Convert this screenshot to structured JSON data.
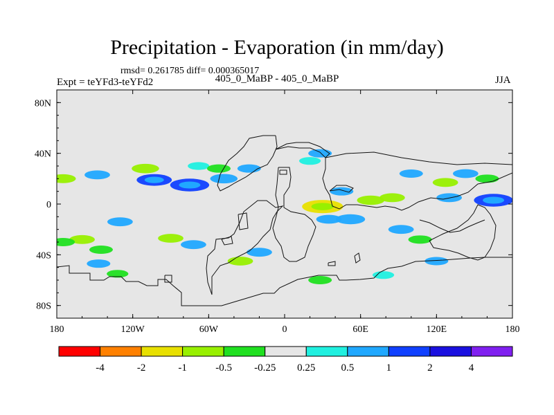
{
  "title": "Precipitation - Evaporation (in mm/day)",
  "stats_text": "rmsd= 0.261785 diff= 0.000365017",
  "experiment": "Expt = teYFd3-teYFd2",
  "comparison": "405_0_MaBP - 405_0_MaBP",
  "season": "JJA",
  "chart_data": {
    "type": "heatmap",
    "title": "Precipitation - Evaporation (in mm/day)",
    "map_projection": "cylindrical equidistant",
    "xlim": [
      -180,
      180
    ],
    "ylim": [
      -90,
      90
    ],
    "x_ticks": [
      {
        "value": -180,
        "label": "180"
      },
      {
        "value": -120,
        "label": "120W"
      },
      {
        "value": -60,
        "label": "60W"
      },
      {
        "value": 0,
        "label": "0"
      },
      {
        "value": 60,
        "label": "60E"
      },
      {
        "value": 120,
        "label": "120E"
      },
      {
        "value": 180,
        "label": "180"
      }
    ],
    "y_ticks": [
      {
        "value": 80,
        "label": "80N"
      },
      {
        "value": 40,
        "label": "40N"
      },
      {
        "value": 0,
        "label": "0"
      },
      {
        "value": -40,
        "label": "40S"
      },
      {
        "value": -80,
        "label": "80S"
      }
    ],
    "background_color": "#e6e6e6",
    "levels": [
      "-4",
      "-2",
      "-1",
      "-0.5",
      "-0.25",
      "0.25",
      "0.5",
      "1",
      "2",
      "4"
    ],
    "bin_colors": [
      "#ff0000",
      "#ff8000",
      "#e8e000",
      "#98f000",
      "#20e020",
      "#e6e6e6",
      "#20f0e0",
      "#20a8ff",
      "#1040ff",
      "#1a10e0",
      "#8020f0"
    ],
    "anomaly_regions": [
      {
        "lon": -148,
        "lat": 23,
        "value": 0.6
      },
      {
        "lon": -175,
        "lat": 20,
        "value": -0.6
      },
      {
        "lon": -110,
        "lat": 28,
        "value": -0.7
      },
      {
        "lon": -103,
        "lat": 19,
        "value": 1.1
      },
      {
        "lon": -75,
        "lat": 15,
        "value": 1.3
      },
      {
        "lon": -48,
        "lat": 20,
        "value": 0.7
      },
      {
        "lon": -130,
        "lat": -14,
        "value": 0.6
      },
      {
        "lon": -68,
        "lat": 30,
        "value": 0.4
      },
      {
        "lon": -52,
        "lat": 28,
        "value": -0.5
      },
      {
        "lon": -28,
        "lat": 28,
        "value": 0.5
      },
      {
        "lon": -160,
        "lat": -28,
        "value": -0.6
      },
      {
        "lon": -145,
        "lat": -36,
        "value": -0.5
      },
      {
        "lon": -90,
        "lat": -27,
        "value": -0.6
      },
      {
        "lon": -72,
        "lat": -32,
        "value": 0.6
      },
      {
        "lon": 30,
        "lat": -2,
        "value": -1.4
      },
      {
        "lon": 68,
        "lat": 3,
        "value": -0.7
      },
      {
        "lon": 85,
        "lat": 5,
        "value": -0.6
      },
      {
        "lon": 45,
        "lat": 10,
        "value": 0.5
      },
      {
        "lon": 28,
        "lat": 40,
        "value": 0.5
      },
      {
        "lon": 20,
        "lat": 34,
        "value": 0.4
      },
      {
        "lon": 52,
        "lat": -12,
        "value": 0.8
      },
      {
        "lon": 35,
        "lat": -12,
        "value": 0.6
      },
      {
        "lon": 100,
        "lat": 24,
        "value": 0.5
      },
      {
        "lon": 127,
        "lat": 17,
        "value": -0.6
      },
      {
        "lon": 143,
        "lat": 24,
        "value": 0.6
      },
      {
        "lon": 160,
        "lat": 20,
        "value": -0.5
      },
      {
        "lon": 165,
        "lat": 3,
        "value": 1.3
      },
      {
        "lon": 130,
        "lat": 5,
        "value": 0.6
      },
      {
        "lon": 92,
        "lat": -20,
        "value": 0.6
      },
      {
        "lon": 107,
        "lat": -28,
        "value": -0.5
      },
      {
        "lon": 120,
        "lat": -45,
        "value": 0.5
      },
      {
        "lon": -35,
        "lat": -45,
        "value": -0.6
      },
      {
        "lon": -20,
        "lat": -38,
        "value": 0.6
      },
      {
        "lon": -147,
        "lat": -47,
        "value": 0.5
      },
      {
        "lon": -132,
        "lat": -55,
        "value": -0.4
      },
      {
        "lon": 28,
        "lat": -60,
        "value": -0.5
      },
      {
        "lon": 78,
        "lat": -56,
        "value": 0.4
      },
      {
        "lon": -175,
        "lat": -30,
        "value": -0.5
      }
    ]
  }
}
